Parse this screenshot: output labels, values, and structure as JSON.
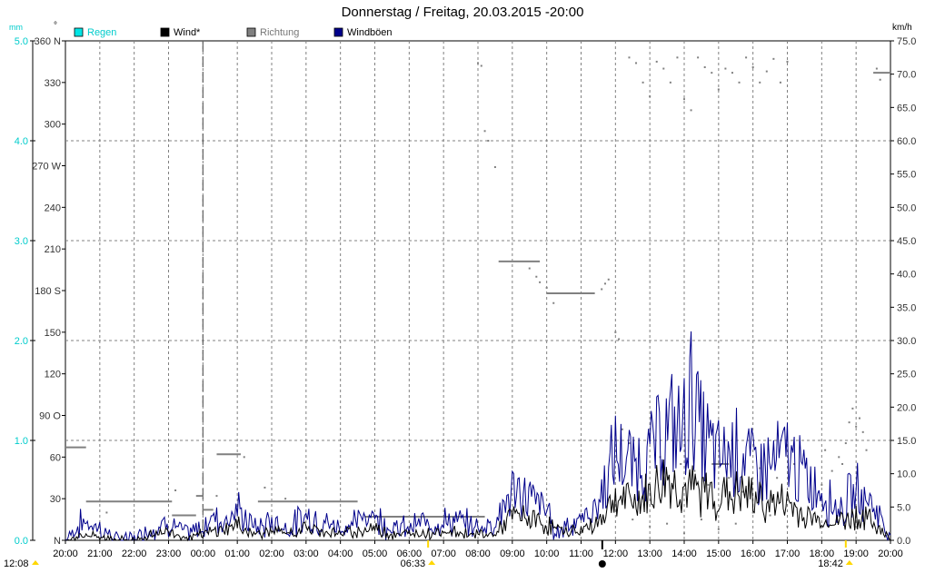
{
  "chart_data": {
    "type": "line",
    "title": "Donnerstag / Freitag, 20.03.2015  -20:00",
    "legend": [
      {
        "label": "Regen",
        "color": "#00e5e5"
      },
      {
        "label": "Wind*",
        "color": "#000000"
      },
      {
        "label": "Richtung",
        "color": "#808080"
      },
      {
        "label": "Windböen",
        "color": "#00008b"
      }
    ],
    "x_ticks": [
      "20:00",
      "21:00",
      "22:00",
      "23:00",
      "00:00",
      "01:00",
      "02:00",
      "03:00",
      "04:00",
      "05:00",
      "06:00",
      "07:00",
      "08:00",
      "09:00",
      "10:00",
      "11:00",
      "12:00",
      "13:00",
      "14:00",
      "15:00",
      "16:00",
      "17:00",
      "18:00",
      "19:00",
      "20:00"
    ],
    "rain_axis": {
      "unit": "mm",
      "ticks": [
        "0.0",
        "1.0",
        "2.0",
        "3.0",
        "4.0",
        "5.0"
      ],
      "range": [
        0,
        5
      ]
    },
    "direction_axis": {
      "ticks": [
        "N",
        "30",
        "60",
        "90 O",
        "120",
        "150",
        "180 S",
        "210",
        "240",
        "270 W",
        "300",
        "330",
        "360 N"
      ],
      "range": [
        0,
        360
      ]
    },
    "speed_axis": {
      "unit": "km/h",
      "ticks": [
        "0.0",
        "5.0",
        "10.0",
        "15.0",
        "20.0",
        "25.0",
        "30.0",
        "35.0",
        "40.0",
        "45.0",
        "50.0",
        "55.0",
        "60.0",
        "65.0",
        "70.0",
        "75.0"
      ],
      "range": [
        0,
        75
      ]
    },
    "midnight_marker": "00:00",
    "sun_times": {
      "left": "12:08",
      "sunrise": "06:33",
      "sunset": "18:42"
    },
    "series": [
      {
        "name": "Windböen",
        "color": "#00008b",
        "points": [
          [
            0,
            0
          ],
          [
            0.5,
            3
          ],
          [
            1,
            2
          ],
          [
            1.5,
            0
          ],
          [
            2,
            0
          ],
          [
            2.5,
            2
          ],
          [
            3,
            3
          ],
          [
            3.5,
            1
          ],
          [
            4,
            2
          ],
          [
            4.3,
            4
          ],
          [
            4.6,
            3
          ],
          [
            4.75,
            4
          ],
          [
            5,
            5
          ],
          [
            5.3,
            3
          ],
          [
            5.6,
            2
          ],
          [
            6,
            3
          ],
          [
            6.5,
            2
          ],
          [
            7,
            4
          ],
          [
            7.5,
            3
          ],
          [
            8,
            2
          ],
          [
            8.5,
            3
          ],
          [
            8.9,
            5
          ],
          [
            9,
            4
          ],
          [
            9.5,
            2
          ],
          [
            10,
            2
          ],
          [
            10.5,
            3
          ],
          [
            11,
            3
          ],
          [
            11.5,
            3
          ],
          [
            12,
            2
          ],
          [
            12.5,
            3
          ],
          [
            13,
            8
          ],
          [
            13.5,
            7
          ],
          [
            14,
            5
          ],
          [
            14.3,
            1
          ],
          [
            14.6,
            3
          ],
          [
            15,
            3
          ],
          [
            15.5,
            6
          ],
          [
            16,
            14
          ],
          [
            16.5,
            12
          ],
          [
            17,
            14
          ],
          [
            17.5,
            18
          ],
          [
            18,
            18
          ],
          [
            18.2,
            24
          ],
          [
            18.5,
            17
          ],
          [
            19,
            13
          ],
          [
            19.5,
            15
          ],
          [
            20,
            12
          ],
          [
            20.5,
            12
          ],
          [
            21,
            14
          ],
          [
            21.5,
            10
          ],
          [
            22,
            8
          ],
          [
            22.5,
            5
          ],
          [
            23,
            8
          ],
          [
            23.5,
            6
          ],
          [
            24,
            0
          ]
        ]
      },
      {
        "name": "Wind*",
        "color": "#000000",
        "points": [
          [
            0,
            0
          ],
          [
            0.5,
            1
          ],
          [
            1,
            0.5
          ],
          [
            2,
            0
          ],
          [
            2.5,
            1
          ],
          [
            3,
            1.5
          ],
          [
            3.5,
            0.5
          ],
          [
            4,
            1
          ],
          [
            4.75,
            2
          ],
          [
            5,
            2.5
          ],
          [
            5.5,
            1
          ],
          [
            6,
            1.5
          ],
          [
            6.5,
            1
          ],
          [
            7,
            2
          ],
          [
            7.5,
            1.5
          ],
          [
            8,
            1
          ],
          [
            9,
            2
          ],
          [
            9.5,
            1
          ],
          [
            10,
            1
          ],
          [
            11,
            1.5
          ],
          [
            12,
            1
          ],
          [
            12.5,
            1
          ],
          [
            13,
            4
          ],
          [
            13.5,
            3.5
          ],
          [
            14,
            2.5
          ],
          [
            14.5,
            1.5
          ],
          [
            15,
            1.5
          ],
          [
            15.5,
            3
          ],
          [
            16,
            7
          ],
          [
            16.5,
            6
          ],
          [
            17,
            7.5
          ],
          [
            17.5,
            10
          ],
          [
            18,
            8
          ],
          [
            18.5,
            8
          ],
          [
            19,
            7
          ],
          [
            19.5,
            7.5
          ],
          [
            20,
            7
          ],
          [
            20.5,
            6
          ],
          [
            21,
            6
          ],
          [
            21.5,
            4
          ],
          [
            22,
            3
          ],
          [
            22.5,
            3
          ],
          [
            23,
            4
          ],
          [
            23.5,
            3
          ],
          [
            24,
            0
          ]
        ]
      },
      {
        "name": "Richtung",
        "color": "#808080",
        "segments": [
          [
            [
              0,
              67
            ],
            [
              0.6,
              67
            ]
          ],
          [
            [
              0.6,
              28
            ],
            [
              3.1,
              28
            ]
          ],
          [
            [
              3.1,
              18
            ],
            [
              3.8,
              18
            ]
          ],
          [
            [
              3.8,
              32
            ],
            [
              4.0,
              32
            ]
          ],
          [
            [
              4.0,
              22
            ],
            [
              4.3,
              22
            ]
          ],
          [
            [
              4.4,
              62
            ],
            [
              5.1,
              62
            ]
          ],
          [
            [
              5.6,
              28
            ],
            [
              8.5,
              28
            ]
          ],
          [
            [
              8.7,
              17
            ],
            [
              12.2,
              17
            ]
          ],
          [
            [
              12.6,
              201
            ],
            [
              13.8,
              201
            ]
          ],
          [
            [
              14.0,
              178
            ],
            [
              15.4,
              178
            ]
          ],
          [
            [
              18.8,
              55
            ],
            [
              19.3,
              55
            ]
          ],
          [
            [
              23.5,
              337
            ],
            [
              24,
              337
            ]
          ]
        ],
        "dots": [
          [
            1.2,
            20
          ],
          [
            3.2,
            36
          ],
          [
            4.4,
            32
          ],
          [
            5.2,
            60
          ],
          [
            5.8,
            38
          ],
          [
            6.4,
            30
          ],
          [
            12.0,
            344
          ],
          [
            12.1,
            342
          ],
          [
            12.2,
            295
          ],
          [
            12.3,
            288
          ],
          [
            12.5,
            269
          ],
          [
            13.5,
            196
          ],
          [
            13.7,
            190
          ],
          [
            13.8,
            186
          ],
          [
            14.0,
            182
          ],
          [
            14.2,
            171
          ],
          [
            15.6,
            181
          ],
          [
            15.7,
            185
          ],
          [
            15.8,
            188
          ],
          [
            16.0,
            150
          ],
          [
            16.1,
            145
          ],
          [
            16.4,
            348
          ],
          [
            16.6,
            344
          ],
          [
            16.8,
            330
          ],
          [
            17.0,
            320
          ],
          [
            17.2,
            345
          ],
          [
            17.4,
            340
          ],
          [
            17.6,
            330
          ],
          [
            17.8,
            348
          ],
          [
            18.0,
            318
          ],
          [
            18.2,
            310
          ],
          [
            18.4,
            348
          ],
          [
            18.6,
            341
          ],
          [
            18.8,
            337
          ],
          [
            19.0,
            325
          ],
          [
            19.2,
            340
          ],
          [
            19.4,
            337
          ],
          [
            19.6,
            330
          ],
          [
            19.8,
            348
          ],
          [
            20.0,
            341
          ],
          [
            20.2,
            330
          ],
          [
            20.4,
            338
          ],
          [
            20.6,
            347
          ],
          [
            20.8,
            330
          ],
          [
            21.0,
            345
          ],
          [
            16.5,
            15
          ],
          [
            17.0,
            10
          ],
          [
            17.5,
            12
          ],
          [
            18.0,
            5
          ],
          [
            18.5,
            15
          ],
          [
            19.0,
            8
          ],
          [
            19.5,
            12
          ],
          [
            20.0,
            20
          ],
          [
            20.5,
            18
          ],
          [
            21.0,
            10
          ],
          [
            16.2,
            80
          ],
          [
            16.4,
            70
          ],
          [
            17.3,
            60
          ],
          [
            17.9,
            55
          ],
          [
            18.3,
            50
          ],
          [
            18.7,
            40
          ],
          [
            19.3,
            45
          ],
          [
            19.7,
            35
          ],
          [
            20.2,
            52
          ],
          [
            20.7,
            45
          ],
          [
            21.2,
            55
          ],
          [
            22.0,
            40
          ],
          [
            22.3,
            50
          ],
          [
            22.5,
            60
          ],
          [
            22.7,
            70
          ],
          [
            22.8,
            85
          ],
          [
            22.9,
            95
          ],
          [
            23.0,
            82
          ],
          [
            23.1,
            88
          ],
          [
            23.2,
            78
          ],
          [
            23.3,
            65
          ],
          [
            23.6,
            340
          ],
          [
            23.7,
            332
          ],
          [
            22.6,
            55
          ],
          [
            22.1,
            65
          ]
        ]
      }
    ]
  }
}
